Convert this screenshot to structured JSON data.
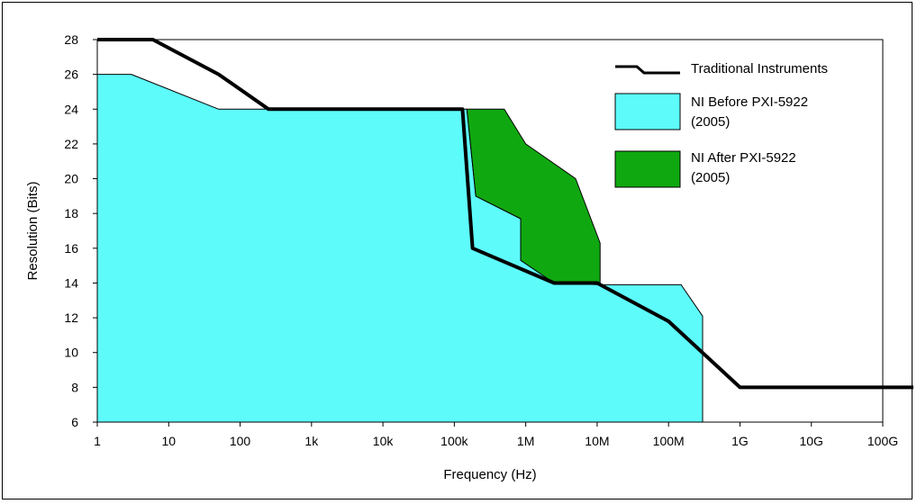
{
  "chart_data": {
    "type": "area",
    "title": "",
    "xlabel": "Frequency (Hz)",
    "ylabel": "Resolution (Bits)",
    "x_scale": "log",
    "x_ticks": [
      {
        "value": 1,
        "label": "1"
      },
      {
        "value": 10,
        "label": "10"
      },
      {
        "value": 100,
        "label": "100"
      },
      {
        "value": 1000,
        "label": "1k"
      },
      {
        "value": 10000,
        "label": "10k"
      },
      {
        "value": 100000,
        "label": "100k"
      },
      {
        "value": 1000000,
        "label": "1M"
      },
      {
        "value": 10000000,
        "label": "10M"
      },
      {
        "value": 100000000,
        "label": "100M"
      },
      {
        "value": 1000000000,
        "label": "1G"
      },
      {
        "value": 10000000000,
        "label": "10G"
      },
      {
        "value": 100000000000,
        "label": "100G"
      }
    ],
    "y_ticks": [
      6,
      8,
      10,
      12,
      14,
      16,
      18,
      20,
      22,
      24,
      26,
      28
    ],
    "xlim": [
      1,
      100000000000
    ],
    "ylim": [
      6,
      28
    ],
    "grid": false,
    "legend_position": "top-right",
    "series": [
      {
        "name": "NI Before PXI-5922 (2005)",
        "kind": "area",
        "color": "#5efbfb",
        "points": [
          [
            1,
            6
          ],
          [
            1,
            26
          ],
          [
            3,
            26
          ],
          [
            50,
            24
          ],
          [
            150000,
            24
          ],
          [
            200000,
            19
          ],
          [
            850000,
            17.7
          ],
          [
            850000,
            15.3
          ],
          [
            11000000,
            13.9
          ],
          [
            150000000,
            13.9
          ],
          [
            300000000,
            12.1
          ],
          [
            300000000,
            6
          ]
        ]
      },
      {
        "name": "NI After PXI-5922 (2005)",
        "kind": "area",
        "color": "#10a810",
        "points": [
          [
            150000,
            24
          ],
          [
            500000,
            24
          ],
          [
            1000000,
            22
          ],
          [
            5000000,
            20
          ],
          [
            11000000,
            16.3
          ],
          [
            11000000,
            13.9
          ],
          [
            2500000,
            14
          ],
          [
            850000,
            15.3
          ],
          [
            850000,
            17.7
          ],
          [
            200000,
            19
          ]
        ]
      },
      {
        "name": "Traditional Instruments",
        "kind": "line",
        "color": "#000000",
        "points": [
          [
            1,
            28
          ],
          [
            6,
            28
          ],
          [
            50,
            26
          ],
          [
            250,
            24
          ],
          [
            130000,
            24
          ],
          [
            180000,
            16
          ],
          [
            2500000,
            14
          ],
          [
            10000000,
            14
          ],
          [
            100000000,
            11.8
          ],
          [
            1000000000,
            8
          ],
          [
            500000000000,
            8
          ]
        ]
      }
    ]
  },
  "legend": [
    {
      "label": "Traditional Instruments",
      "color": "#000000",
      "kind": "line"
    },
    {
      "label": "NI Before PXI-5922",
      "label2": "(2005)",
      "color": "#5efbfb",
      "kind": "area"
    },
    {
      "label": "NI After PXI-5922",
      "label2": "(2005)",
      "color": "#10a810",
      "kind": "area"
    }
  ]
}
